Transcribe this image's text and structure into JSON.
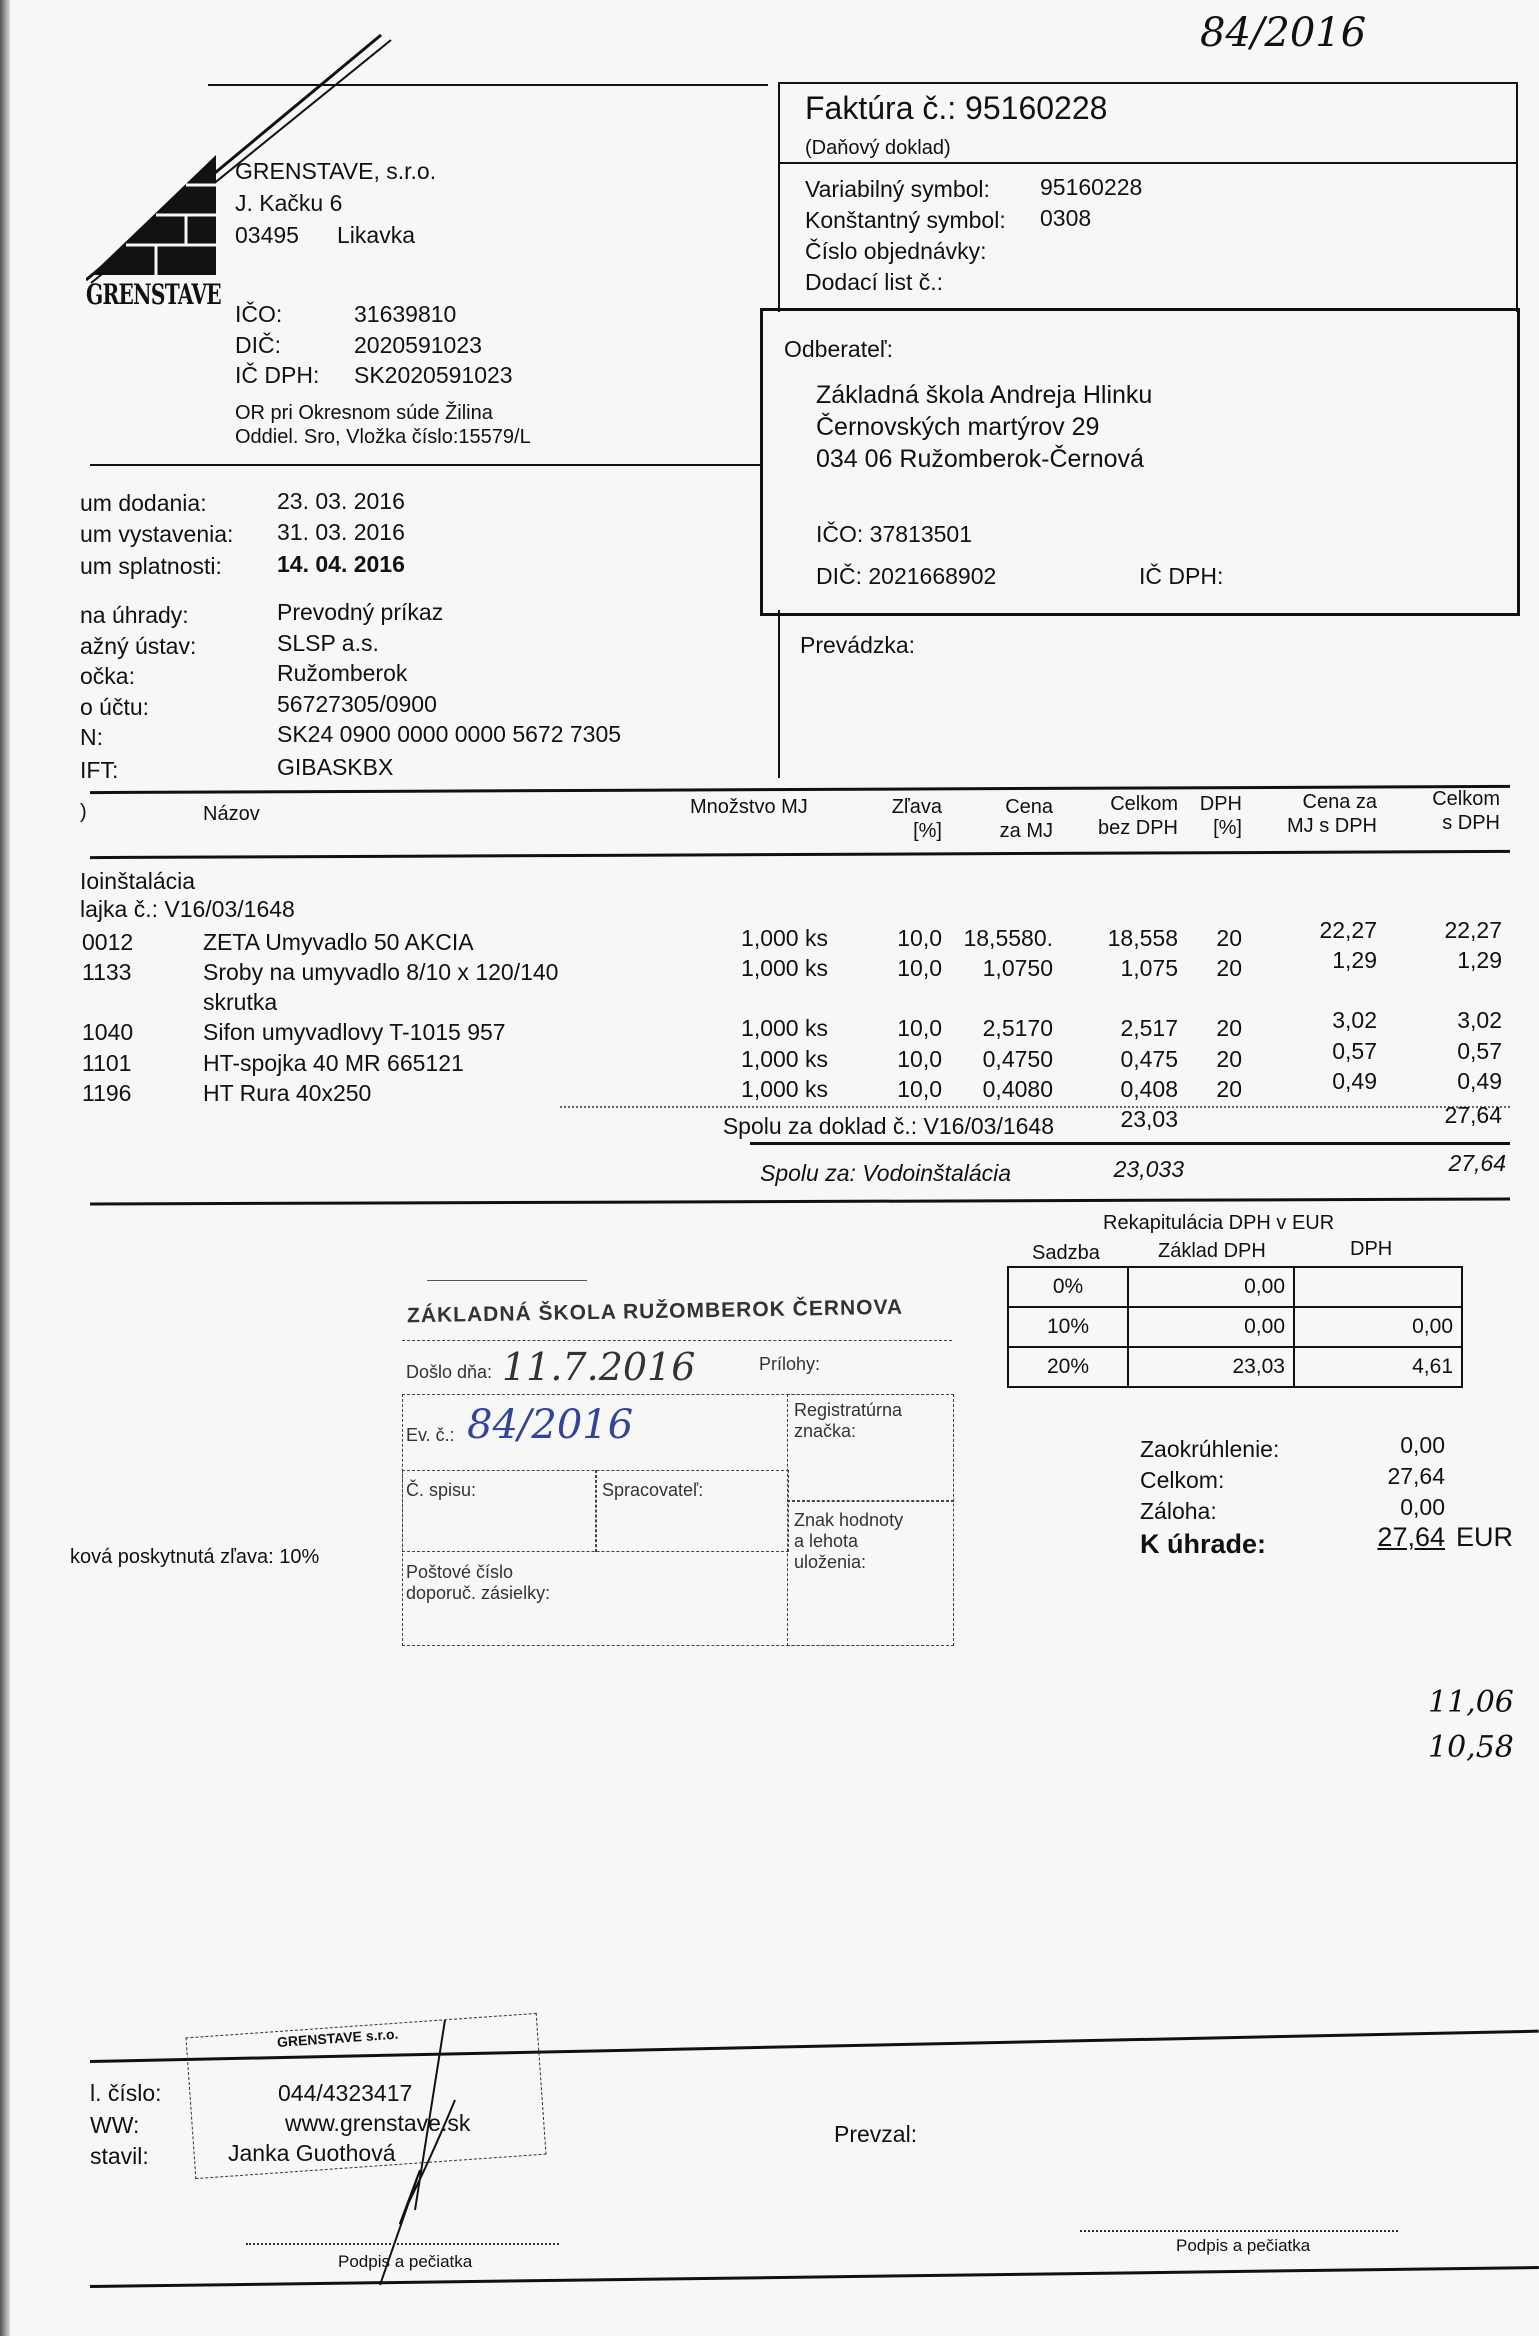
{
  "handwritten": {
    "top_note": "84/2016",
    "note1": "11,06",
    "note2": "10,58"
  },
  "seller": {
    "logo_text": "GRENSTAVE",
    "name": "GRENSTAVE, s.r.o.",
    "street": "J. Kačku 6",
    "zip": "03495",
    "city": "Likavka",
    "ico_label": "IČO:",
    "ico": "31639810",
    "dic_label": "DIČ:",
    "dic": "2020591023",
    "icdph_label": "IČ DPH:",
    "icdph": "SK2020591023",
    "register1": "OR pri Okresnom súde Žilina",
    "register2": "Oddiel. Sro, Vložka číslo:15579/L"
  },
  "invoice": {
    "title": "Faktúra č.: 95160228",
    "subtitle": "(Daňový doklad)",
    "vs_label": "Variabilný symbol:",
    "vs": "95160228",
    "ks_label": "Konštantný symbol:",
    "ks": "0308",
    "order_label": "Číslo objednávky:",
    "delivery_label": "Dodací list č.:"
  },
  "buyer": {
    "label": "Odberateľ:",
    "name": "Základná škola Andreja Hlinku",
    "street": "Černovských martýrov 29",
    "city": "034 06  Ružomberok-Černová",
    "ico": "IČO: 37813501",
    "dic": "DIČ: 2021668902",
    "icdph": "IČ DPH:"
  },
  "prevadzka_label": "Prevádzka:",
  "dates": [
    {
      "label": "um dodania:",
      "value": "23. 03. 2016"
    },
    {
      "label": "um vystavenia:",
      "value": "31. 03. 2016"
    },
    {
      "label": "um splatnosti:",
      "value": "14. 04. 2016"
    }
  ],
  "payment": [
    {
      "label": "na úhrady:",
      "value": "Prevodný príkaz"
    },
    {
      "label": "ažný ústav:",
      "value": "SLSP a.s."
    },
    {
      "label": "očka:",
      "value": "Ružomberok"
    },
    {
      "label": "o účtu:",
      "value": "56727305/0900"
    },
    {
      "label": "N:",
      "value": "SK24 0900 0000 0000 5672 7305"
    },
    {
      "label": "IFT:",
      "value": "GIBASKBX"
    }
  ],
  "table": {
    "headers": {
      "code": ")",
      "name": "Názov",
      "qty": "Množstvo MJ",
      "discount": [
        "Zľava",
        "[%]"
      ],
      "price": [
        "Cena",
        "za MJ"
      ],
      "total_net": [
        "Celkom",
        "bez DPH"
      ],
      "vat": [
        "DPH",
        "[%]"
      ],
      "price_vat": [
        "Cena za",
        "MJ s DPH"
      ],
      "total_vat": [
        "Celkom",
        "s DPH"
      ]
    },
    "section": "Ioinštalácia",
    "delivery_note": "lajka č.: V16/03/1648",
    "items": [
      {
        "code": "0012",
        "name": "ZETA Umyvadlo  50   AKCIA",
        "name2": "",
        "qty": "1,000 ks",
        "discount": "10,0",
        "price": "18,5580.",
        "total_net": "18,558",
        "vat": "20",
        "price_vat": "22,27",
        "total_vat": "22,27"
      },
      {
        "code": "1133",
        "name": "Sroby na umyvadlo  8/10 x 120/140",
        "name2": "skrutka",
        "qty": "1,000 ks",
        "discount": "10,0",
        "price": "1,0750",
        "total_net": "1,075",
        "vat": "20",
        "price_vat": "1,29",
        "total_vat": "1,29"
      },
      {
        "code": "1040",
        "name": "Sifon umyvadlovy T-1015  957",
        "name2": "",
        "qty": "1,000 ks",
        "discount": "10,0",
        "price": "2,5170",
        "total_net": "2,517",
        "vat": "20",
        "price_vat": "3,02",
        "total_vat": "3,02"
      },
      {
        "code": "1101",
        "name": "HT-spojka 40            MR 665121",
        "name2": "",
        "qty": "1,000 ks",
        "discount": "10,0",
        "price": "0,4750",
        "total_net": "0,475",
        "vat": "20",
        "price_vat": "0,57",
        "total_vat": "0,57"
      },
      {
        "code": "1196",
        "name": "HT Rura 40x250",
        "name2": "",
        "qty": "1,000 ks",
        "discount": "10,0",
        "price": "0,4080",
        "total_net": "0,408",
        "vat": "20",
        "price_vat": "0,49",
        "total_vat": "0,49"
      }
    ],
    "subtotal_label": "Spolu za doklad č.:  V16/03/1648",
    "subtotal_net": "23,03",
    "subtotal_vat": "27,64",
    "section_total_label": "Spolu za:  Vodoinštalácia",
    "section_total_net": "23,033",
    "section_total_vat": "27,64"
  },
  "recap": {
    "title": "Rekapitulácia DPH v EUR",
    "headers": [
      "Sadzba",
      "Základ DPH",
      "DPH"
    ],
    "rows": [
      {
        "rate": "0%",
        "base": "0,00",
        "vat": ""
      },
      {
        "rate": "10%",
        "base": "0,00",
        "vat": "0,00"
      },
      {
        "rate": "20%",
        "base": "23,03",
        "vat": "4,61"
      }
    ]
  },
  "totals": {
    "rounding_label": "Zaokrúhlenie:",
    "rounding": "0,00",
    "total_label": "Celkom:",
    "total": "27,64",
    "deposit_label": "Záloha:",
    "deposit": "0,00",
    "due_label": "K úhrade:",
    "due": "27,64",
    "currency": "EUR"
  },
  "discount_note": "ková poskytnutá zľava: 10%",
  "registry_stamp": {
    "school": "ZÁKLADNÁ ŠKOLA  RUŽOMBEROK ČERNOVA",
    "received_label": "Došlo dňa:",
    "received": "11.7.2016",
    "attachments_label": "Prílohy:",
    "ev_label": "Ev. č.:",
    "ev": "84/2016",
    "registry_mark_label": "Registratúrna značka:",
    "file_label": "Č. spisu:",
    "processor_label": "Spracovateľ:",
    "value_label": "Znak hodnoty a lehota uloženia:",
    "post_label": "Poštové číslo doporuč. zásielky:"
  },
  "footer": {
    "phone_label": "l. číslo:",
    "phone": "044/4323417",
    "web_label": "WW:",
    "web": "www.grenstave.sk",
    "issuer_label": "stavil:",
    "issuer": "Janka Guothová",
    "received_by_label": "Prevzal:",
    "sign_left": "Podpis a pečiatka",
    "sign_right": "Podpis a pečiatka",
    "company_stamp": "GRENSTAVE s.r.o."
  }
}
